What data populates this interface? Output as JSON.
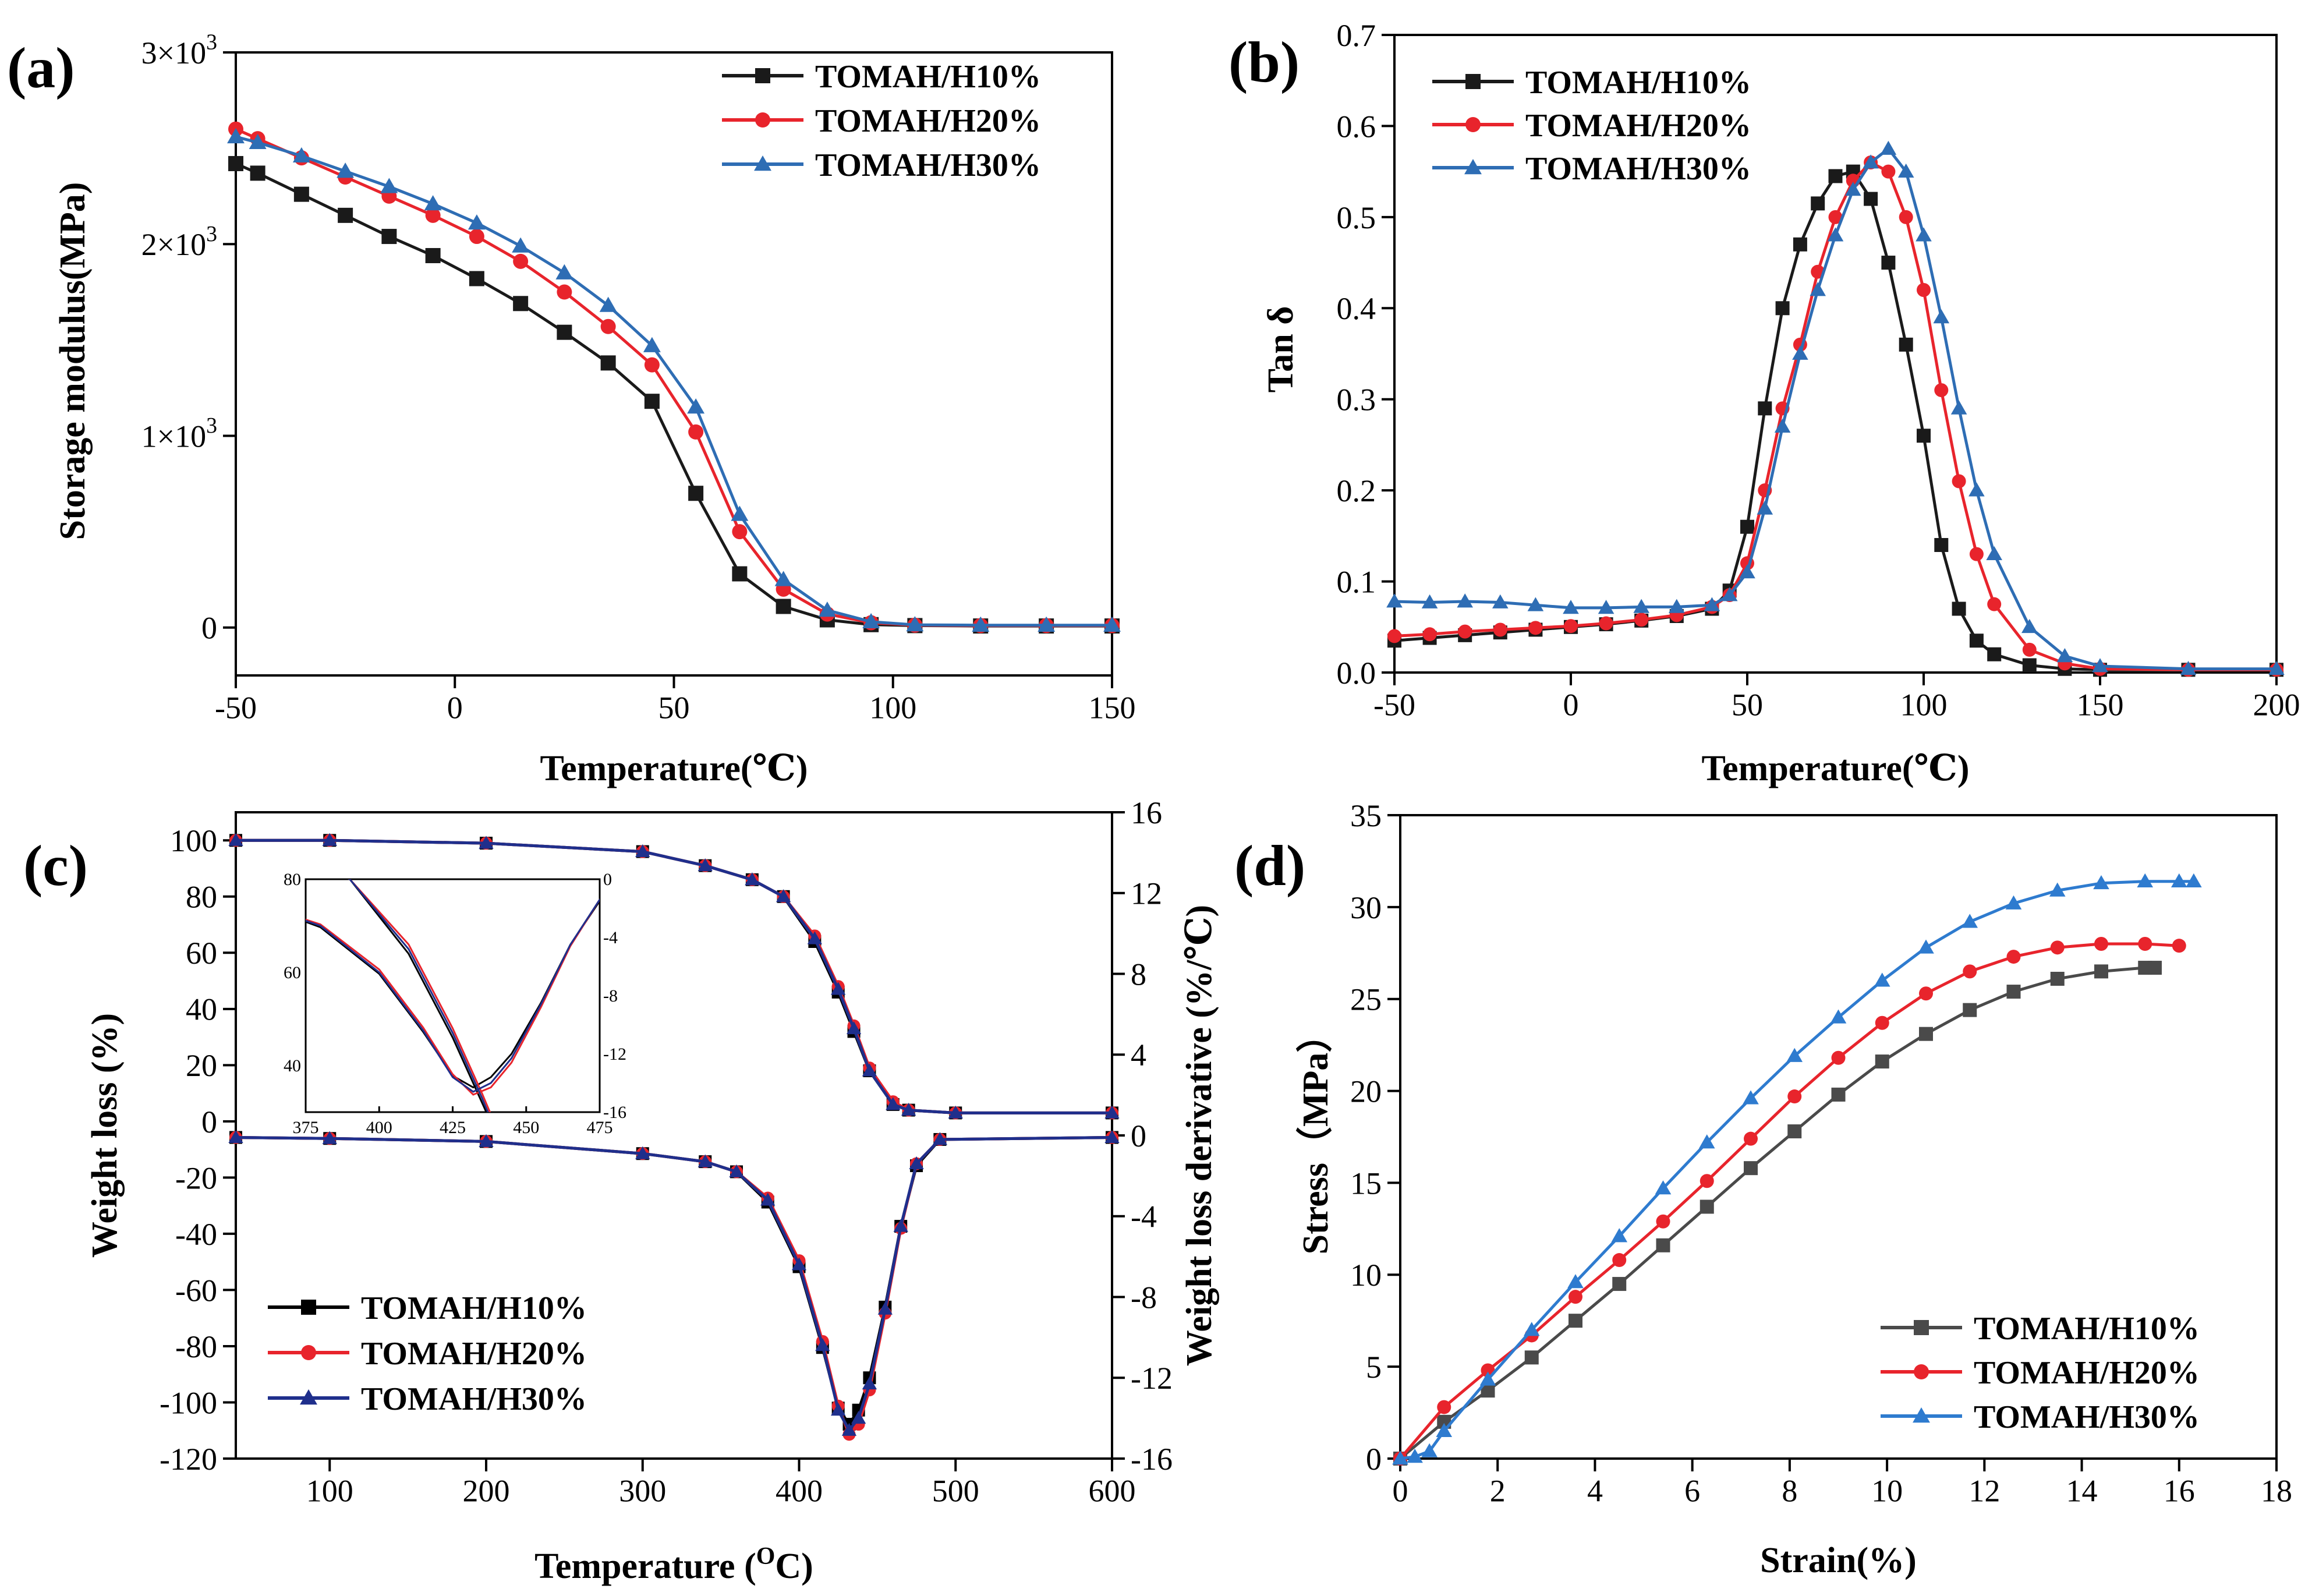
{
  "chart_data": [
    {
      "id": "a",
      "panel_label": "(a)",
      "type": "line",
      "xlabel": "Temperature(℃)",
      "ylabel": "Storage modulus(MPa)",
      "xlim": [
        -50,
        150
      ],
      "ylim": [
        -250,
        3000
      ],
      "xticks": [
        -50,
        0,
        50,
        100,
        150
      ],
      "xtick_labels": [
        "-50",
        "0",
        "50",
        "100",
        "150"
      ],
      "yticks": [
        0,
        1000,
        2000,
        3000
      ],
      "ytick_labels": [
        {
          "main": "0",
          "sup": ""
        },
        {
          "main": "1×10",
          "sup": "3"
        },
        {
          "main": "2×10",
          "sup": "3"
        },
        {
          "main": "3×10",
          "sup": "3"
        }
      ],
      "legend_position": "top-right",
      "series": [
        {
          "name": "TOMAH/H10%",
          "color": "#1a1a1a",
          "marker": "square",
          "x": [
            -50,
            -45,
            -35,
            -25,
            -15,
            -5,
            5,
            15,
            25,
            35,
            45,
            55,
            65,
            75,
            85,
            95,
            105,
            120,
            135,
            150
          ],
          "y": [
            2420,
            2370,
            2260,
            2150,
            2040,
            1940,
            1820,
            1690,
            1540,
            1380,
            1180,
            700,
            280,
            110,
            40,
            15,
            10,
            8,
            8,
            8
          ]
        },
        {
          "name": "TOMAH/H20%",
          "color": "#e8242c",
          "marker": "circle",
          "x": [
            -50,
            -45,
            -35,
            -25,
            -15,
            -5,
            5,
            15,
            25,
            35,
            45,
            55,
            65,
            75,
            85,
            95,
            105,
            120,
            135,
            150
          ],
          "y": [
            2600,
            2550,
            2450,
            2350,
            2250,
            2150,
            2040,
            1910,
            1750,
            1570,
            1370,
            1020,
            500,
            200,
            70,
            25,
            12,
            10,
            10,
            10
          ]
        },
        {
          "name": "TOMAH/H30%",
          "color": "#2e6db4",
          "marker": "triangle",
          "x": [
            -50,
            -45,
            -35,
            -25,
            -15,
            -5,
            5,
            15,
            25,
            35,
            45,
            55,
            65,
            75,
            85,
            95,
            105,
            120,
            135,
            150
          ],
          "y": [
            2560,
            2530,
            2460,
            2380,
            2300,
            2210,
            2110,
            1990,
            1850,
            1680,
            1470,
            1150,
            590,
            250,
            90,
            30,
            14,
            12,
            12,
            12
          ]
        }
      ]
    },
    {
      "id": "b",
      "panel_label": "(b)",
      "type": "line",
      "xlabel": "Temperature(℃)",
      "ylabel": "Tan  δ",
      "xlim": [
        -50,
        200
      ],
      "ylim": [
        0,
        0.7
      ],
      "xticks": [
        -50,
        0,
        50,
        100,
        150,
        200
      ],
      "xtick_labels": [
        "-50",
        "0",
        "50",
        "100",
        "150",
        "200"
      ],
      "yticks": [
        0,
        0.1,
        0.2,
        0.3,
        0.4,
        0.5,
        0.6,
        0.7
      ],
      "ytick_labels": [
        "0.0",
        "0.1",
        "0.2",
        "0.3",
        "0.4",
        "0.5",
        "0.6",
        "0.7"
      ],
      "legend_position": "top-left",
      "series": [
        {
          "name": "TOMAH/H10%",
          "color": "#1a1a1a",
          "marker": "square",
          "x": [
            -50,
            -40,
            -30,
            -20,
            -10,
            0,
            10,
            20,
            30,
            40,
            45,
            50,
            55,
            60,
            65,
            70,
            75,
            80,
            85,
            90,
            95,
            100,
            105,
            110,
            115,
            120,
            130,
            140,
            150,
            175,
            200
          ],
          "y": [
            0.035,
            0.038,
            0.041,
            0.044,
            0.047,
            0.05,
            0.053,
            0.057,
            0.062,
            0.07,
            0.09,
            0.16,
            0.29,
            0.4,
            0.47,
            0.515,
            0.545,
            0.55,
            0.52,
            0.45,
            0.36,
            0.26,
            0.14,
            0.07,
            0.035,
            0.02,
            0.008,
            0.004,
            0.003,
            0.003,
            0.003
          ]
        },
        {
          "name": "TOMAH/H20%",
          "color": "#e8242c",
          "marker": "circle",
          "x": [
            -50,
            -40,
            -30,
            -20,
            -10,
            0,
            10,
            20,
            30,
            40,
            45,
            50,
            55,
            60,
            65,
            70,
            75,
            80,
            85,
            90,
            95,
            100,
            105,
            110,
            115,
            120,
            130,
            140,
            150,
            175,
            200
          ],
          "y": [
            0.04,
            0.042,
            0.045,
            0.047,
            0.049,
            0.051,
            0.054,
            0.058,
            0.063,
            0.072,
            0.085,
            0.12,
            0.2,
            0.29,
            0.36,
            0.44,
            0.5,
            0.54,
            0.56,
            0.55,
            0.5,
            0.42,
            0.31,
            0.21,
            0.13,
            0.075,
            0.025,
            0.01,
            0.004,
            0.003,
            0.003
          ]
        },
        {
          "name": "TOMAH/H30%",
          "color": "#2e6db4",
          "marker": "triangle",
          "x": [
            -50,
            -40,
            -30,
            -20,
            -10,
            0,
            10,
            20,
            30,
            40,
            45,
            50,
            55,
            60,
            65,
            70,
            75,
            80,
            85,
            90,
            95,
            100,
            105,
            110,
            115,
            120,
            130,
            140,
            150,
            175,
            200
          ],
          "y": [
            0.078,
            0.077,
            0.078,
            0.077,
            0.074,
            0.071,
            0.071,
            0.072,
            0.072,
            0.074,
            0.085,
            0.11,
            0.18,
            0.27,
            0.35,
            0.42,
            0.48,
            0.53,
            0.56,
            0.575,
            0.55,
            0.48,
            0.39,
            0.29,
            0.2,
            0.13,
            0.05,
            0.018,
            0.007,
            0.004,
            0.004
          ]
        }
      ]
    },
    {
      "id": "c",
      "panel_label": "(c)",
      "type": "line",
      "xlabel": "Temperature (",
      "xlabel_sup": "O",
      "xlabel_tail": "C)",
      "ylabel": "Weight loss (%)",
      "y2label": "Weight loss derivative (%/℃)",
      "xlim": [
        40,
        600
      ],
      "ylim": [
        -120,
        110
      ],
      "y2lim": [
        -16,
        16
      ],
      "xticks": [
        100,
        200,
        300,
        400,
        500,
        600
      ],
      "xtick_labels": [
        "100",
        "200",
        "300",
        "400",
        "500",
        "600"
      ],
      "yticks": [
        -120,
        -100,
        -80,
        -60,
        -40,
        -20,
        0,
        20,
        40,
        60,
        80,
        100
      ],
      "ytick_labels": [
        "-120",
        "-100",
        "-80",
        "-60",
        "-40",
        "-20",
        "0",
        "20",
        "40",
        "60",
        "80",
        "100"
      ],
      "y2ticks": [
        -16,
        -12,
        -8,
        -4,
        0,
        4,
        8,
        12,
        16
      ],
      "y2tick_labels": [
        "-16",
        "-12",
        "-8",
        "-4",
        "0",
        "4",
        "8",
        "12",
        "16"
      ],
      "legend_position": "bottom-left",
      "series": [
        {
          "name": "TOMAH/H10%",
          "color": "#000000",
          "marker": "square",
          "x": [
            40,
            100,
            200,
            300,
            340,
            370,
            390,
            410,
            425,
            435,
            445,
            460,
            470,
            500,
            600
          ],
          "y": [
            100,
            100,
            99,
            96,
            91,
            86,
            80,
            64,
            46,
            32,
            18,
            6,
            4,
            3,
            3
          ],
          "deriv_x": [
            40,
            100,
            200,
            300,
            340,
            360,
            380,
            400,
            415,
            425,
            432,
            438,
            445,
            455,
            465,
            475,
            490,
            600
          ],
          "deriv_y": [
            -0.1,
            -0.15,
            -0.3,
            -0.9,
            -1.3,
            -1.8,
            -3.3,
            -6.5,
            -10.5,
            -13.5,
            -14.3,
            -13.6,
            -12.0,
            -8.5,
            -4.5,
            -1.5,
            -0.2,
            -0.1
          ]
        },
        {
          "name": "TOMAH/H20%",
          "color": "#e8242c",
          "marker": "circle",
          "x": [
            40,
            100,
            200,
            300,
            340,
            370,
            390,
            410,
            425,
            435,
            445,
            460,
            470,
            500,
            600
          ],
          "y": [
            100,
            100,
            99,
            96,
            91,
            86,
            80,
            66,
            48,
            34,
            19,
            7,
            4,
            3,
            3
          ],
          "deriv_x": [
            40,
            100,
            200,
            300,
            340,
            360,
            380,
            400,
            415,
            425,
            432,
            438,
            445,
            455,
            465,
            475,
            490,
            600
          ],
          "deriv_y": [
            -0.1,
            -0.15,
            -0.3,
            -0.9,
            -1.3,
            -1.8,
            -3.1,
            -6.2,
            -10.2,
            -13.4,
            -14.8,
            -14.3,
            -12.6,
            -8.8,
            -4.6,
            -1.4,
            -0.2,
            -0.1
          ]
        },
        {
          "name": "TOMAH/H30%",
          "color": "#1f2f8c",
          "marker": "triangle",
          "x": [
            40,
            100,
            200,
            300,
            340,
            370,
            390,
            410,
            425,
            435,
            445,
            460,
            470,
            500,
            600
          ],
          "y": [
            100,
            100,
            99,
            96,
            91,
            86,
            80,
            65,
            47,
            33,
            18,
            6,
            4,
            3,
            3
          ],
          "deriv_x": [
            40,
            100,
            200,
            300,
            340,
            360,
            380,
            400,
            415,
            425,
            432,
            438,
            445,
            455,
            465,
            475,
            490,
            600
          ],
          "deriv_y": [
            -0.1,
            -0.15,
            -0.3,
            -0.9,
            -1.3,
            -1.8,
            -3.2,
            -6.4,
            -10.4,
            -13.6,
            -14.6,
            -14.0,
            -12.3,
            -8.6,
            -4.5,
            -1.4,
            -0.2,
            -0.1
          ]
        }
      ],
      "inset": {
        "xlim": [
          375,
          475
        ],
        "ylim": [
          30,
          80
        ],
        "y2lim": [
          -16,
          0
        ],
        "xticks": [
          375,
          400,
          425,
          450,
          475
        ],
        "xtick_labels": [
          "375",
          "400",
          "425",
          "450",
          "475"
        ],
        "yticks": [
          40,
          60,
          80
        ],
        "ytick_labels": [
          "40",
          "60",
          "80"
        ],
        "y2ticks": [
          -16,
          -12,
          -8,
          -4,
          0
        ],
        "y2tick_labels": [
          "-16",
          "-12",
          "-8",
          "-4",
          "0"
        ]
      }
    },
    {
      "id": "d",
      "panel_label": "(d)",
      "type": "line",
      "xlabel": "Strain(%)",
      "ylabel": "Stress（MPa）",
      "xlim": [
        0,
        18
      ],
      "ylim": [
        0,
        35
      ],
      "xticks": [
        0,
        2,
        4,
        6,
        8,
        10,
        12,
        14,
        16,
        18
      ],
      "xtick_labels": [
        "0",
        "2",
        "4",
        "6",
        "8",
        "10",
        "12",
        "14",
        "16",
        "18"
      ],
      "yticks": [
        0,
        5,
        10,
        15,
        20,
        25,
        30,
        35
      ],
      "ytick_labels": [
        "0",
        "5",
        "10",
        "15",
        "20",
        "25",
        "30",
        "35"
      ],
      "legend_position": "bottom-right",
      "series": [
        {
          "name": "TOMAH/H10%",
          "color": "#4a4a4a",
          "marker": "square",
          "x": [
            0,
            0.9,
            1.8,
            2.7,
            3.6,
            4.5,
            5.4,
            6.3,
            7.2,
            8.1,
            9.0,
            9.9,
            10.8,
            11.7,
            12.6,
            13.5,
            14.4,
            15.3,
            15.5
          ],
          "y": [
            0,
            2.0,
            3.7,
            5.5,
            7.5,
            9.5,
            11.6,
            13.7,
            15.8,
            17.8,
            19.8,
            21.6,
            23.1,
            24.4,
            25.4,
            26.1,
            26.5,
            26.7,
            26.7
          ]
        },
        {
          "name": "TOMAH/H20%",
          "color": "#e8242c",
          "marker": "circle",
          "x": [
            0,
            0.9,
            1.8,
            2.7,
            3.6,
            4.5,
            5.4,
            6.3,
            7.2,
            8.1,
            9.0,
            9.9,
            10.8,
            11.7,
            12.6,
            13.5,
            14.4,
            15.3,
            16.0
          ],
          "y": [
            0,
            2.8,
            4.8,
            6.7,
            8.8,
            10.8,
            12.9,
            15.1,
            17.4,
            19.7,
            21.8,
            23.7,
            25.3,
            26.5,
            27.3,
            27.8,
            28.0,
            28.0,
            27.9
          ]
        },
        {
          "name": "TOMAH/H30%",
          "color": "#2e7bcf",
          "marker": "triangle",
          "x": [
            0,
            0.3,
            0.6,
            0.9,
            1.8,
            2.7,
            3.6,
            4.5,
            5.4,
            6.3,
            7.2,
            8.1,
            9.0,
            9.9,
            10.8,
            11.7,
            12.6,
            13.5,
            14.4,
            15.3,
            16.0,
            16.3
          ],
          "y": [
            0,
            0.1,
            0.4,
            1.5,
            4.3,
            7.0,
            9.6,
            12.1,
            14.7,
            17.2,
            19.6,
            21.9,
            24.0,
            26.0,
            27.8,
            29.2,
            30.2,
            30.9,
            31.3,
            31.4,
            31.4,
            31.4
          ]
        }
      ]
    }
  ]
}
